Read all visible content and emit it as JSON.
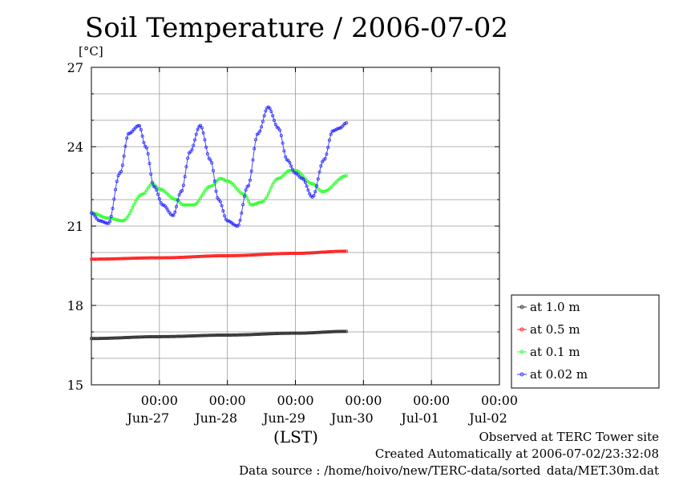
{
  "chart_data": {
    "type": "line",
    "title": "Soil Temperature / 2006-07-02",
    "ylabel": "[°C]",
    "xlabel": "(LST)",
    "ylim": [
      15,
      27
    ],
    "yticks": [
      15,
      18,
      21,
      24,
      27
    ],
    "xlim": [
      0,
      6
    ],
    "x_unit": "days since Jun-26 00:00 (LST)",
    "xticks": [
      {
        "x": 1,
        "time": "00:00",
        "date": "Jun-27"
      },
      {
        "x": 2,
        "time": "00:00",
        "date": "Jun-28"
      },
      {
        "x": 3,
        "time": "00:00",
        "date": "Jun-29"
      },
      {
        "x": 4,
        "time": "00:00",
        "date": "Jun-30"
      },
      {
        "x": 5,
        "time": "00:00",
        "date": "Jul-01"
      },
      {
        "x": 6,
        "time": "00:00",
        "date": "Jul-02"
      }
    ],
    "grid": true,
    "legend_position": "right",
    "series": [
      {
        "name": "at 1.0 m",
        "color": "#333333",
        "x": [
          0,
          1,
          2,
          3,
          3.75
        ],
        "y": [
          16.75,
          16.82,
          16.88,
          16.95,
          17.02
        ]
      },
      {
        "name": "at 0.5 m",
        "color": "#ff2020",
        "x": [
          0,
          1,
          2,
          3,
          3.75
        ],
        "y": [
          19.75,
          19.8,
          19.88,
          19.97,
          20.05
        ]
      },
      {
        "name": "at 0.1 m",
        "color": "#33ff33",
        "x": [
          0,
          0.25,
          0.46,
          0.75,
          0.9,
          1.0,
          1.25,
          1.35,
          1.5,
          1.75,
          1.9,
          2.0,
          2.25,
          2.35,
          2.5,
          2.75,
          2.92,
          3.0,
          3.25,
          3.4,
          3.75
        ],
        "y": [
          21.5,
          21.3,
          21.2,
          22.2,
          22.6,
          22.4,
          22.0,
          21.8,
          21.8,
          22.5,
          22.8,
          22.7,
          22.2,
          21.8,
          21.9,
          22.8,
          23.1,
          23.1,
          22.6,
          22.3,
          22.9
        ]
      },
      {
        "name": "at 0.02 m",
        "color": "#3333ff",
        "x": [
          0,
          0.12,
          0.25,
          0.42,
          0.55,
          0.7,
          0.8,
          0.92,
          1.05,
          1.2,
          1.32,
          1.45,
          1.6,
          1.75,
          1.87,
          2.0,
          2.15,
          2.3,
          2.45,
          2.6,
          2.75,
          2.88,
          3.0,
          3.1,
          3.25,
          3.42,
          3.55,
          3.65,
          3.75
        ],
        "y": [
          21.5,
          21.2,
          21.1,
          23.0,
          24.5,
          24.8,
          24.0,
          22.5,
          21.8,
          21.4,
          22.3,
          23.8,
          24.8,
          23.5,
          22.0,
          21.2,
          21.0,
          22.5,
          24.5,
          25.5,
          24.7,
          23.5,
          23.0,
          22.8,
          22.1,
          23.5,
          24.6,
          24.7,
          24.9
        ]
      }
    ]
  },
  "legend": {
    "entries": [
      "at 1.0 m",
      "at 0.5 m",
      "at 0.1 m",
      "at 0.02 m"
    ]
  },
  "footer": {
    "line1": "Observed at TERC Tower site",
    "line2": "Created Automatically at 2006-07-02/23:32:08",
    "line3": "Data source : /home/hoivo/new/TERC-data/sorted_data/MET.30m.dat"
  }
}
